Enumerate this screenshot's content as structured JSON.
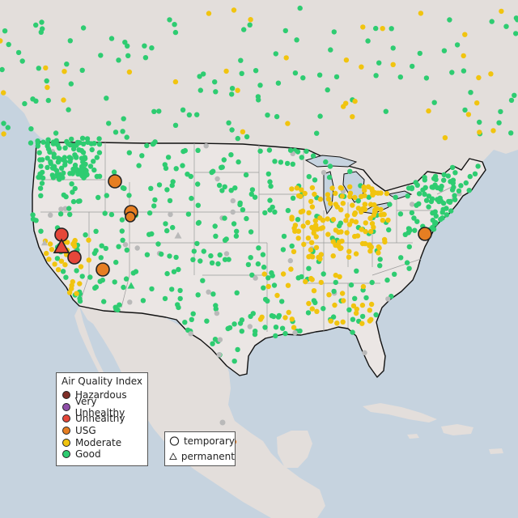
{
  "legend": {
    "title": "Air Quality Index",
    "categories": [
      {
        "key": "hazardous",
        "label": "Hazardous",
        "color": "#7e2e27"
      },
      {
        "key": "very-unhealthy",
        "label": "Very Unhealthy",
        "color": "#8f4fa8"
      },
      {
        "key": "unhealthy",
        "label": "Unhealthy",
        "color": "#e5473a"
      },
      {
        "key": "usg",
        "label": "USG",
        "color": "#e67e22"
      },
      {
        "key": "moderate",
        "label": "Moderate",
        "color": "#f1c40f"
      },
      {
        "key": "good",
        "label": "Good",
        "color": "#2ecc71"
      }
    ]
  },
  "monitor_type_legend": {
    "temporary": "temporary",
    "permanent": "permanent"
  },
  "colors": {
    "ocean": "#c6d3df",
    "land_us": "#ebe6e4",
    "land_other": "#e3dedb",
    "border": "#111111",
    "state_line": "#9a9a9a",
    "inactive_monitor": "#b9b9b9"
  }
}
